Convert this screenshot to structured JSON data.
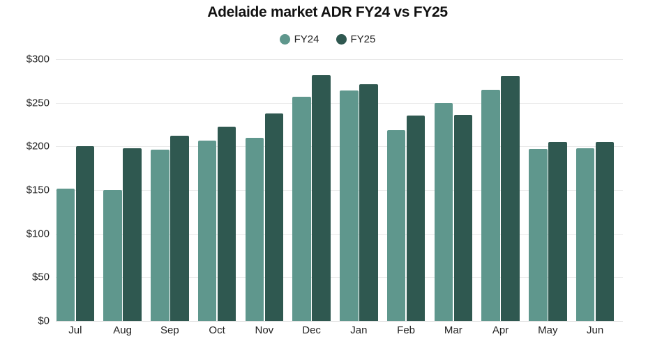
{
  "chart_data": {
    "type": "bar",
    "title": "Adelaide market ADR FY24 vs FY25",
    "xlabel": "",
    "ylabel": "",
    "categories": [
      "Jul",
      "Aug",
      "Sep",
      "Oct",
      "Nov",
      "Dec",
      "Jan",
      "Feb",
      "Mar",
      "Apr",
      "May",
      "Jun"
    ],
    "series": [
      {
        "name": "FY24",
        "color": "#5f978d",
        "values": [
          152,
          150,
          196,
          207,
          210,
          257,
          264,
          219,
          250,
          265,
          197,
          198
        ]
      },
      {
        "name": "FY25",
        "color": "#2f5850",
        "values": [
          200,
          198,
          212,
          223,
          238,
          282,
          271,
          235,
          236,
          281,
          205,
          205
        ]
      }
    ],
    "ylim": [
      0,
      300
    ],
    "yticks": [
      0,
      50,
      100,
      150,
      200,
      250,
      300
    ],
    "ytick_labels": [
      "$0",
      "$50",
      "$100",
      "$150",
      "$200",
      "$250",
      "$300"
    ],
    "grid": true,
    "legend_position": "top-center"
  },
  "legend": {
    "items": [
      {
        "label": "FY24",
        "color": "#5f978d"
      },
      {
        "label": "FY25",
        "color": "#2f5850"
      }
    ]
  }
}
